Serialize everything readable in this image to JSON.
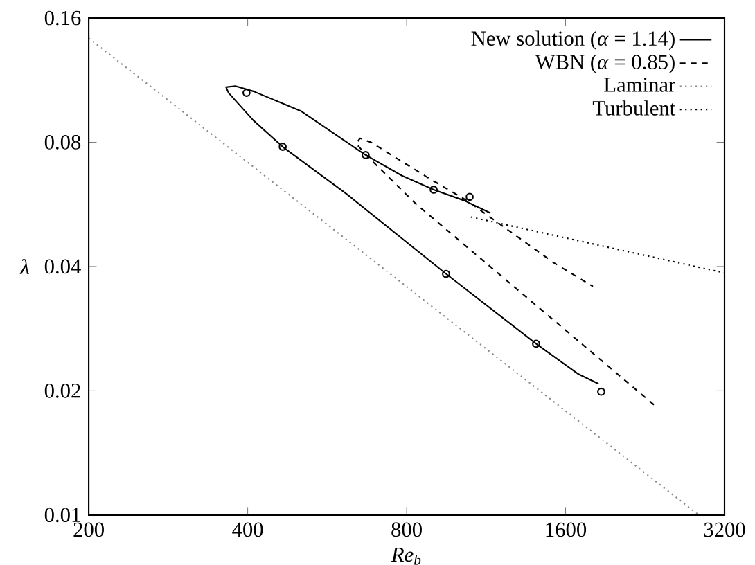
{
  "chart_data": {
    "type": "line",
    "xlabel": "Re$_{b}$",
    "ylabel": "λ",
    "log": "xy",
    "xlim": [
      200,
      3200
    ],
    "ylim": [
      0.01,
      0.16
    ],
    "xticks": [
      200,
      400,
      800,
      1600,
      3200
    ],
    "yticks": [
      0.01,
      0.02,
      0.04,
      0.08,
      0.16
    ],
    "legend": "top right",
    "grid": false,
    "series": [
      {
        "name": "New solution (*α* = 1.14)",
        "color": "#000000",
        "line_style": "solid",
        "marker": "none",
        "x": [
          1847,
          1687,
          1407,
          950,
          615,
          466,
          410,
          368,
          364,
          379,
          410,
          504,
          669,
          784,
          900,
          1028,
          1153
        ],
        "values": [
          0.0208,
          0.022,
          0.026,
          0.0384,
          0.06,
          0.078,
          0.0904,
          0.1054,
          0.1088,
          0.1095,
          0.1063,
          0.0953,
          0.0745,
          0.0664,
          0.0614,
          0.0578,
          0.0539
        ]
      },
      {
        "name": "WBN (*α* = 0.85)",
        "color": "#000000",
        "line_style": "dashed",
        "marker": "none",
        "x": [
          2352,
          832,
          674,
          642,
          653,
          686,
          884,
          1040,
          1232,
          1522,
          1803
        ],
        "values": [
          0.0185,
          0.0568,
          0.074,
          0.0794,
          0.0818,
          0.0799,
          0.0653,
          0.0578,
          0.0495,
          0.0408,
          0.0358
        ]
      },
      {
        "name": "Laminar",
        "color": "#888888",
        "line_style": "dotted",
        "marker": "none",
        "x": [
          200,
          2860
        ],
        "values": [
          0.143,
          0.01
        ]
      },
      {
        "name": "Turbulent",
        "color": "#000000",
        "line_style": "dotted",
        "marker": "none",
        "x": [
          1059,
          3200
        ],
        "values": [
          0.0527,
          0.0386
        ]
      },
      {
        "type": "scatter",
        "color": "#000000",
        "marker": "circle",
        "x": [
          398,
          466,
          669,
          900,
          1053,
          950,
          1407,
          1869
        ],
        "values": [
          0.1054,
          0.078,
          0.0745,
          0.0614,
          0.059,
          0.0384,
          0.026,
          0.0199
        ]
      }
    ]
  }
}
